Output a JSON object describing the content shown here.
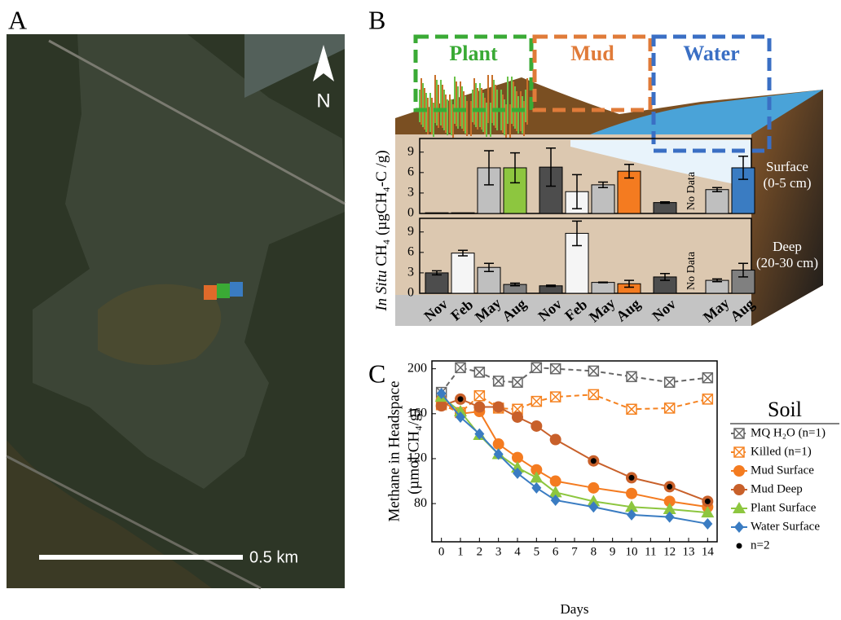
{
  "panel_labels": [
    "A",
    "B",
    "C"
  ],
  "map": {
    "north": "N",
    "scale": "0.5 km"
  },
  "diagram": {
    "zones": [
      {
        "name": "Plant",
        "color": "#3aaa35"
      },
      {
        "name": "Mud",
        "color": "#e07b39"
      },
      {
        "name": "Water",
        "color": "#3a6fc4"
      }
    ],
    "ylabel_italic": "In Situ",
    "ylabel": " CH₄ (µgCH₄-C /g)"
  },
  "chart_data": [
    {
      "type": "bar",
      "depth": [
        "Surface",
        "(0-5 cm)"
      ],
      "ylim": [
        0,
        11
      ],
      "yticks": [
        0,
        3,
        6,
        9
      ],
      "missing_label": "No Data",
      "series": [
        {
          "colors": [
            "#4d4d4d",
            "#f5f5f5",
            "#bfbfbf",
            "#8dc63f"
          ],
          "values": [
            0.1,
            0.1,
            6.7,
            6.7
          ],
          "errors": [
            0,
            0,
            2.5,
            2.2
          ]
        },
        {
          "colors": [
            "#4d4d4d",
            "#f5f5f5",
            "#bfbfbf",
            "#f47b20"
          ],
          "values": [
            6.8,
            3.2,
            4.2,
            6.2
          ],
          "errors": [
            2.8,
            2.5,
            0.4,
            1.0
          ]
        },
        {
          "colors": [
            "#4d4d4d",
            "#f5f5f5",
            "#bfbfbf",
            "#3a7cc2"
          ],
          "values": [
            1.6,
            null,
            3.5,
            6.7
          ],
          "errors": [
            0.1,
            null,
            0.3,
            1.7
          ]
        }
      ]
    },
    {
      "type": "bar",
      "depth": [
        "Deep",
        "(20-30 cm)"
      ],
      "ylim": [
        0,
        11
      ],
      "yticks": [
        0,
        3,
        6,
        9
      ],
      "missing_label": "No Data",
      "categories": [
        "Nov",
        "Feb",
        "May",
        "Aug"
      ],
      "series": [
        {
          "colors": [
            "#4d4d4d",
            "#f5f5f5",
            "#bfbfbf",
            "#808080"
          ],
          "values": [
            3.0,
            5.9,
            3.8,
            1.3
          ],
          "errors": [
            0.3,
            0.4,
            0.6,
            0.2
          ]
        },
        {
          "colors": [
            "#4d4d4d",
            "#f5f5f5",
            "#bfbfbf",
            "#f47b20"
          ],
          "values": [
            1.1,
            8.8,
            1.6,
            1.4
          ],
          "errors": [
            0.1,
            1.8,
            0.05,
            0.5
          ]
        },
        {
          "colors": [
            "#4d4d4d",
            "#f5f5f5",
            "#bfbfbf",
            "#808080"
          ],
          "values": [
            2.4,
            null,
            1.9,
            3.4
          ],
          "errors": [
            0.5,
            null,
            0.2,
            1.0
          ]
        }
      ]
    },
    {
      "type": "line",
      "ylabel": [
        "Methane in Headspace",
        "(µmol CH₄/g)"
      ],
      "xlabel": "Days",
      "xlim": [
        -0.5,
        14.5
      ],
      "ylim": [
        46,
        207
      ],
      "xticks": [
        0,
        1,
        2,
        3,
        4,
        5,
        6,
        7,
        8,
        9,
        10,
        11,
        12,
        13,
        14
      ],
      "yticks": [
        80,
        120,
        160,
        200
      ],
      "legend_title": "Soil",
      "series": [
        {
          "name": "MQ H₂O (n=1)",
          "color": "#666666",
          "marker": "xsquare",
          "dashed": true,
          "x": [
            0,
            1,
            2,
            3,
            4,
            5,
            6,
            8,
            10,
            12,
            14
          ],
          "values": [
            179,
            201,
            197,
            189,
            188,
            201,
            200,
            198,
            193,
            188,
            192
          ]
        },
        {
          "name": "Killed (n=1)",
          "color": "#f58220",
          "marker": "xsquare",
          "dashed": true,
          "x": [
            0,
            1,
            2,
            3,
            4,
            5,
            6,
            8,
            10,
            12,
            14
          ],
          "values": [
            168,
            161,
            176,
            165,
            164,
            171,
            175,
            177,
            164,
            165,
            173
          ]
        },
        {
          "name": "Mud Surface",
          "color": "#f47b20",
          "marker": "circle",
          "x": [
            0,
            1,
            2,
            3,
            4,
            5,
            6,
            8,
            10,
            12,
            14
          ],
          "values": [
            172,
            160,
            162,
            133,
            121,
            110,
            100,
            94,
            89,
            82,
            77
          ]
        },
        {
          "name": "Mud Deep",
          "color": "#c8602a",
          "marker": "circle",
          "x": [
            0,
            1,
            2,
            3,
            4,
            5,
            6,
            8,
            10,
            12,
            14
          ],
          "values": [
            167,
            173,
            166,
            166,
            157,
            149,
            137,
            118,
            103,
            95,
            82
          ]
        },
        {
          "name": "Plant Surface",
          "color": "#8dc63f",
          "marker": "triangle",
          "x": [
            0,
            1,
            2,
            3,
            4,
            5,
            6,
            8,
            10,
            12,
            14
          ],
          "values": [
            175,
            162,
            141,
            124,
            112,
            103,
            90,
            82,
            77,
            75,
            72
          ]
        },
        {
          "name": "Water Surface",
          "color": "#3a7cc2",
          "marker": "diamond",
          "x": [
            0,
            1,
            2,
            3,
            4,
            5,
            6,
            8,
            10,
            12,
            14
          ],
          "values": [
            178,
            157,
            142,
            124,
            107,
            94,
            83,
            77,
            70,
            68,
            62
          ]
        },
        {
          "name": "n=2",
          "color": "#000000",
          "marker": "dot",
          "noline": true,
          "x": [
            1,
            8,
            10,
            12,
            14
          ],
          "values": [
            173,
            118,
            103,
            95,
            82
          ]
        }
      ]
    }
  ]
}
